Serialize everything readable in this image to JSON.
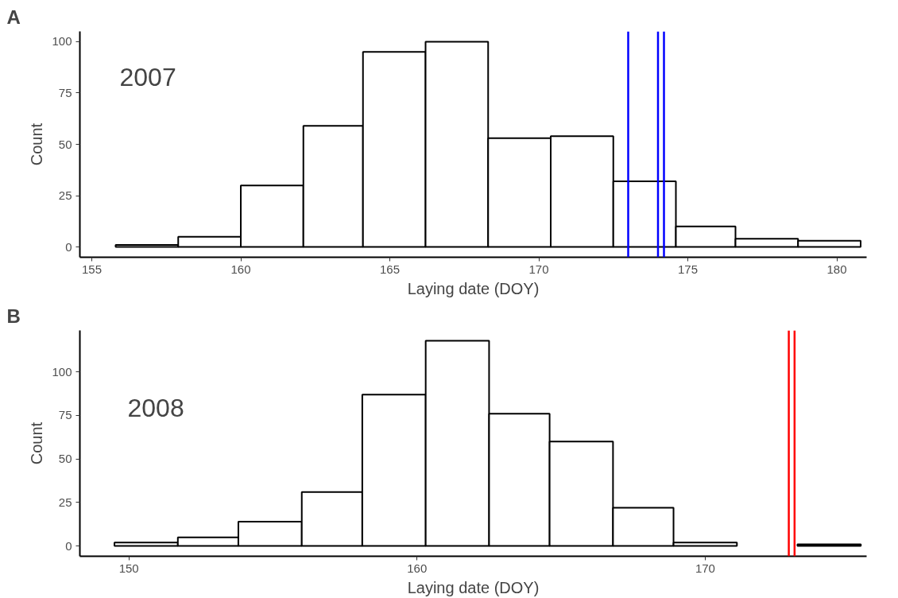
{
  "chart_data": [
    {
      "type": "histogram",
      "title": "A",
      "annotations": [
        "2007"
      ],
      "xlabel": "Laying date (DOY)",
      "ylabel": "Count",
      "color": "#ffffff",
      "bins": [
        155.8,
        157.9,
        160.0,
        162.1,
        164.1,
        166.2,
        168.3,
        170.4,
        172.5,
        174.6,
        176.6,
        178.7,
        180.8
      ],
      "values": [
        1,
        5,
        30,
        59,
        95,
        100,
        53,
        54,
        32,
        10,
        4,
        3
      ],
      "xlim": [
        154.6,
        181.0
      ],
      "xticks": [
        155,
        160,
        165,
        170,
        175,
        180
      ],
      "ylim": [
        -5,
        105
      ],
      "yticks": [
        0,
        25,
        50,
        75,
        100
      ],
      "ref_lines": [
        {
          "axis": "x",
          "value": 173.0,
          "color": "#0000ff"
        },
        {
          "axis": "x",
          "value": 174.0,
          "color": "#0000ff"
        },
        {
          "axis": "x",
          "value": 174.2,
          "color": "#0000ff"
        }
      ]
    },
    {
      "type": "histogram",
      "title": "B",
      "annotations": [
        "2008"
      ],
      "xlabel": "Laying date (DOY)",
      "ylabel": "Count",
      "color": "#ffffff",
      "bins": [
        149.5,
        151.7,
        153.8,
        156.0,
        158.1,
        160.3,
        162.5,
        164.6,
        166.8,
        168.9,
        171.1,
        173.2,
        175.4
      ],
      "values": [
        2,
        5,
        14,
        31,
        87,
        118,
        76,
        60,
        22,
        2,
        0,
        1
      ],
      "xlim": [
        148.3,
        175.6
      ],
      "xticks": [
        150,
        160,
        170
      ],
      "ylim": [
        -5.9,
        123.9
      ],
      "yticks": [
        0,
        25,
        50,
        75,
        100
      ],
      "ref_lines": [
        {
          "axis": "x",
          "value": 172.9,
          "color": "#ff0000"
        },
        {
          "axis": "x",
          "value": 173.1,
          "color": "#ff0000"
        }
      ]
    }
  ]
}
